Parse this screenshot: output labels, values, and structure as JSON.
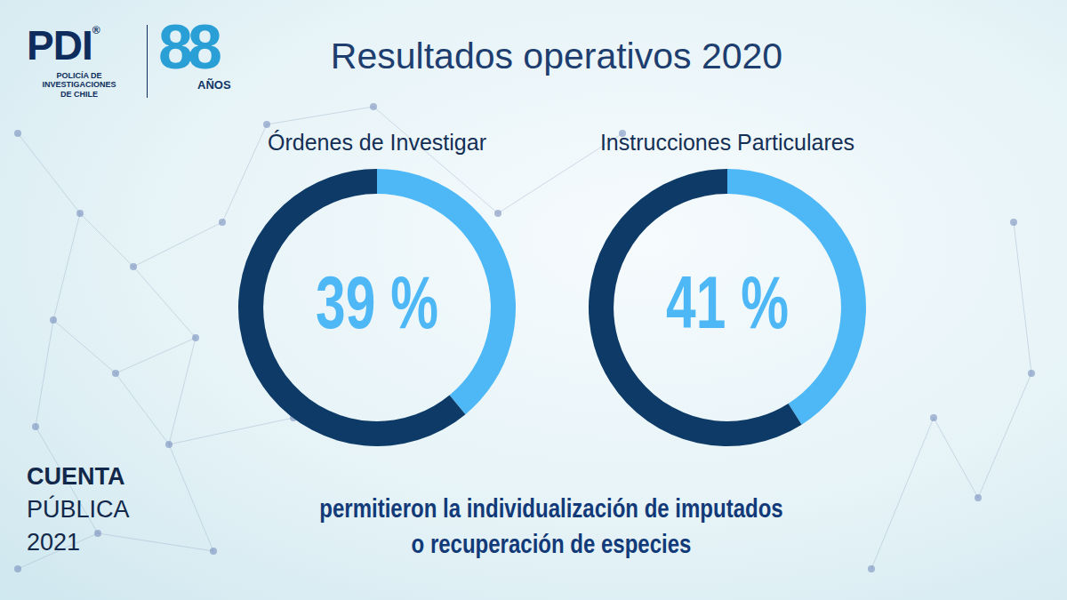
{
  "header": {
    "logo": "PDI",
    "logo_mark": "®",
    "logo_subtitle": [
      "POLICÍA DE INVESTIGACIONES",
      "DE CHILE"
    ],
    "anniversary": "88",
    "anniversary_label": "AÑOS"
  },
  "title": "Resultados operativos 2020",
  "chart_data": [
    {
      "type": "doughnut",
      "title": "Órdenes de Investigar",
      "categories": [
        null,
        null
      ],
      "values": [
        39,
        61
      ],
      "colors": [
        "#4db8f5",
        "#0d3a66"
      ],
      "data_labels": true,
      "value_labels": [
        "39 %",
        null
      ]
    },
    {
      "type": "doughnut",
      "title": "Instrucciones Particulares",
      "categories": [
        null,
        null
      ],
      "values": [
        41,
        59
      ],
      "colors": [
        "#4db8f5",
        "#0d3a66"
      ],
      "data_labels": true,
      "value_labels": [
        "41 %",
        null
      ]
    }
  ],
  "caption": [
    "permitieron la individualización de imputados",
    "o recuperación de especies"
  ],
  "footer": [
    "CUENTA",
    "PÚBLICA",
    "2021"
  ]
}
